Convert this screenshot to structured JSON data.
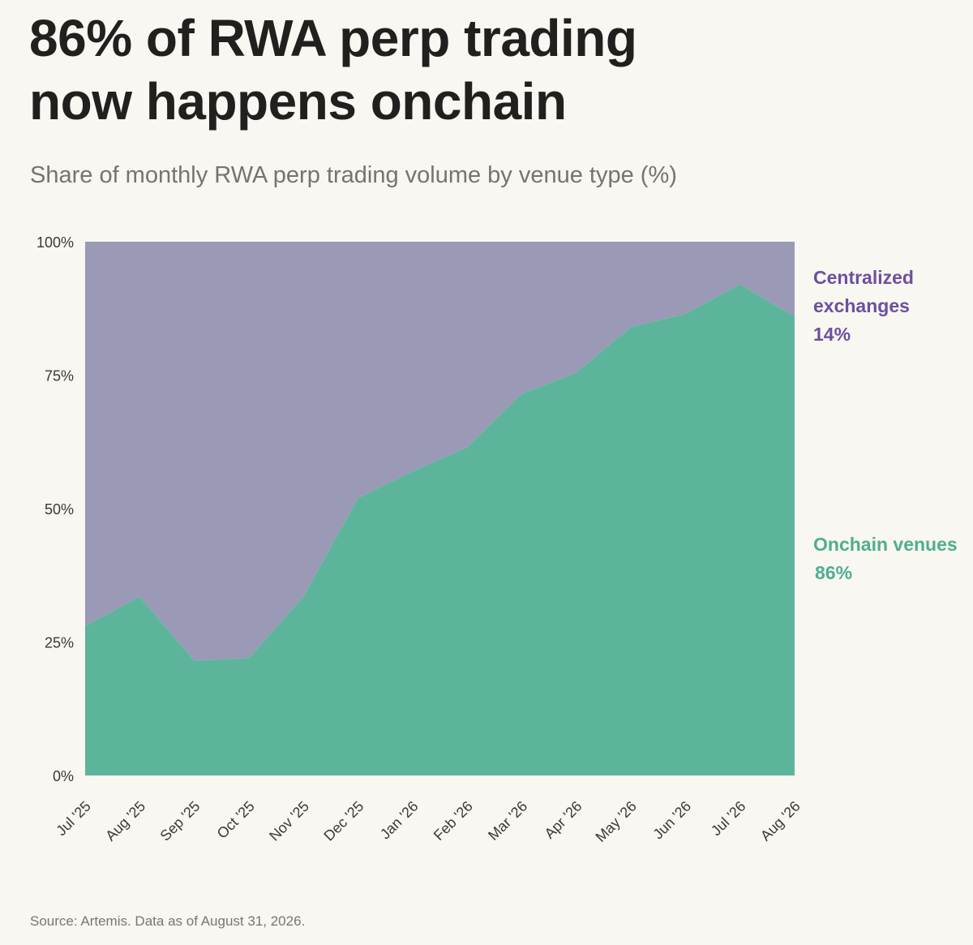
{
  "title_lines": [
    "86% of RWA perp trading",
    "now happens onchain"
  ],
  "subtitle": "Share of monthly RWA perp trading volume by venue type (%)",
  "source": "Source: Artemis. Data as of August 31, 2026.",
  "colors": {
    "onchain": "#5cb59b",
    "centralized": "#9a9ab6",
    "onchain_label": "#4fae8f",
    "centralized_label": "#6d4fa0",
    "tick_text": "#3b3835"
  },
  "chart_data": {
    "type": "area",
    "stacked": true,
    "normalized": true,
    "x": [
      "Jul '25",
      "Aug '25",
      "Sep '25",
      "Oct '25",
      "Nov '25",
      "Dec '25",
      "Jan '26",
      "Feb '26",
      "Mar '26",
      "Apr '26",
      "May '26",
      "Jun '26",
      "Jul '26",
      "Aug '26"
    ],
    "series": [
      {
        "name": "Onchain venues",
        "label_value": "86%",
        "values": [
          28,
          33.5,
          21.5,
          22,
          33.5,
          52,
          57,
          61.5,
          71.5,
          75.5,
          84,
          86.5,
          92,
          86
        ]
      },
      {
        "name": "Centralized exchanges",
        "label_value": "14%",
        "values": [
          72,
          66.5,
          78.5,
          78,
          66.5,
          48,
          43,
          38.5,
          28.5,
          24.5,
          16,
          13.5,
          8,
          14
        ]
      }
    ],
    "yticks": [
      0,
      25,
      50,
      75,
      100
    ],
    "ytick_labels": [
      "0%",
      "25%",
      "50%",
      "75%",
      "100%"
    ],
    "ylim": [
      0,
      100
    ],
    "grid": false,
    "legend": "direct labels right of plot"
  }
}
